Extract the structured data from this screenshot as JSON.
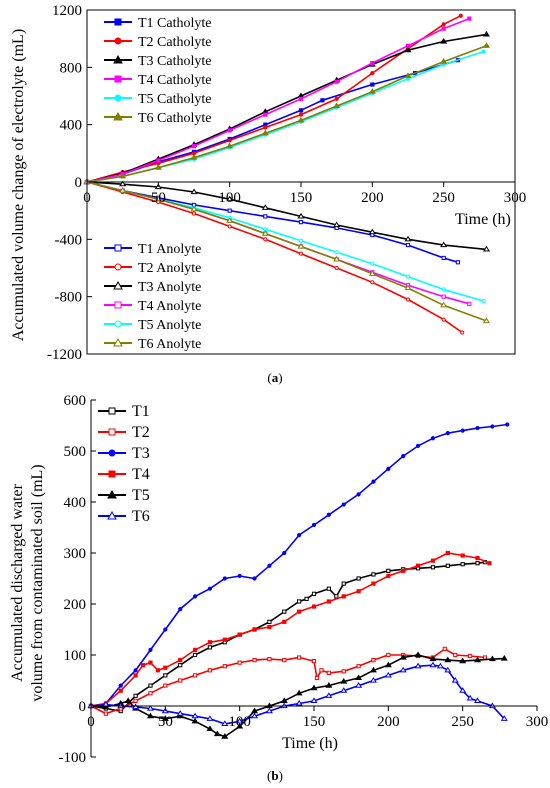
{
  "chart_data": [
    {
      "panel": "(a)",
      "panel_letter": "a",
      "type": "line",
      "xlabel": "Time (h)",
      "ylabel": "Accumulated volume change of electrolyte (mL)",
      "xlim": [
        0,
        300
      ],
      "ylim": [
        -1200,
        1200
      ],
      "xticks": [
        0,
        50,
        100,
        150,
        200,
        250,
        300
      ],
      "yticks": [
        -1200,
        -800,
        -400,
        0,
        400,
        800,
        1200
      ],
      "legend_placement": [
        "top-left",
        "bottom-left"
      ],
      "grid": false,
      "series": [
        {
          "name": "T1 Catholyte",
          "color": "#0000ff",
          "marker": "square-filled",
          "x": [
            0,
            25,
            50,
            75,
            100,
            125,
            150,
            165,
            200,
            230,
            260
          ],
          "y": [
            0,
            55,
            140,
            210,
            300,
            400,
            500,
            570,
            680,
            760,
            850
          ]
        },
        {
          "name": "T2 Catholyte",
          "color": "#ff0000",
          "marker": "circle-filled",
          "x": [
            0,
            25,
            50,
            75,
            100,
            125,
            150,
            175,
            200,
            225,
            250,
            262
          ],
          "y": [
            0,
            70,
            130,
            200,
            290,
            380,
            470,
            580,
            760,
            930,
            1100,
            1160
          ]
        },
        {
          "name": "T3 Catholyte",
          "color": "#000000",
          "marker": "triangle-filled",
          "x": [
            0,
            25,
            50,
            75,
            100,
            125,
            150,
            175,
            200,
            225,
            250,
            280
          ],
          "y": [
            0,
            60,
            160,
            260,
            370,
            490,
            600,
            710,
            820,
            920,
            980,
            1030
          ]
        },
        {
          "name": "T4 Catholyte",
          "color": "#ff00ff",
          "marker": "square-filled",
          "x": [
            0,
            25,
            50,
            75,
            100,
            125,
            150,
            175,
            200,
            225,
            250,
            268
          ],
          "y": [
            0,
            55,
            150,
            250,
            360,
            470,
            580,
            700,
            830,
            950,
            1070,
            1140
          ]
        },
        {
          "name": "T5 Catholyte",
          "color": "#00ffff",
          "marker": "circle-filled",
          "x": [
            0,
            25,
            50,
            75,
            100,
            125,
            150,
            175,
            200,
            225,
            250,
            278
          ],
          "y": [
            0,
            40,
            100,
            160,
            240,
            330,
            420,
            520,
            620,
            720,
            820,
            910
          ]
        },
        {
          "name": "T6 Catholyte",
          "color": "#808000",
          "marker": "triangle-filled",
          "x": [
            0,
            25,
            50,
            75,
            100,
            125,
            150,
            175,
            200,
            225,
            250,
            280
          ],
          "y": [
            0,
            40,
            100,
            170,
            250,
            340,
            430,
            530,
            630,
            740,
            840,
            950
          ]
        },
        {
          "name": "T1 Anolyte",
          "color": "#0000ff",
          "marker": "square-open",
          "x": [
            0,
            25,
            50,
            75,
            100,
            125,
            150,
            175,
            200,
            225,
            250,
            260
          ],
          "y": [
            0,
            -60,
            -110,
            -160,
            -200,
            -240,
            -280,
            -320,
            -370,
            -440,
            -530,
            -560
          ]
        },
        {
          "name": "T2 Anolyte",
          "color": "#ff0000",
          "marker": "circle-open",
          "x": [
            0,
            25,
            50,
            75,
            100,
            125,
            150,
            175,
            200,
            225,
            250,
            263
          ],
          "y": [
            0,
            -70,
            -140,
            -220,
            -310,
            -400,
            -500,
            -600,
            -700,
            -820,
            -960,
            -1050
          ]
        },
        {
          "name": "T3 Anolyte",
          "color": "#000000",
          "marker": "triangle-open",
          "x": [
            0,
            25,
            50,
            75,
            100,
            125,
            150,
            175,
            200,
            225,
            250,
            280
          ],
          "y": [
            0,
            -15,
            -35,
            -70,
            -120,
            -180,
            -240,
            -300,
            -350,
            -400,
            -440,
            -470
          ]
        },
        {
          "name": "T4 Anolyte",
          "color": "#ff00ff",
          "marker": "square-open",
          "x": [
            0,
            25,
            50,
            75,
            100,
            125,
            150,
            175,
            200,
            225,
            250,
            268
          ],
          "y": [
            0,
            -60,
            -120,
            -190,
            -270,
            -360,
            -450,
            -540,
            -630,
            -720,
            -800,
            -850
          ]
        },
        {
          "name": "T5 Anolyte",
          "color": "#00ffff",
          "marker": "circle-open",
          "x": [
            0,
            25,
            50,
            75,
            100,
            125,
            150,
            175,
            200,
            225,
            250,
            278
          ],
          "y": [
            0,
            -60,
            -120,
            -180,
            -250,
            -330,
            -410,
            -490,
            -570,
            -660,
            -750,
            -830
          ]
        },
        {
          "name": "T6 Anolyte",
          "color": "#808000",
          "marker": "triangle-open",
          "x": [
            0,
            25,
            50,
            75,
            100,
            125,
            150,
            175,
            200,
            225,
            250,
            280
          ],
          "y": [
            0,
            -60,
            -120,
            -190,
            -270,
            -360,
            -450,
            -540,
            -640,
            -740,
            -860,
            -970
          ]
        }
      ]
    },
    {
      "panel": "(b)",
      "panel_letter": "b",
      "type": "line",
      "xlabel": "Time (h)",
      "ylabel_lines": [
        "Accumulated discharged water",
        "volume from contaminated soil (mL)"
      ],
      "xlim": [
        0,
        300
      ],
      "ylim": [
        -100,
        600
      ],
      "xticks": [
        0,
        50,
        100,
        150,
        200,
        250,
        300
      ],
      "yticks": [
        -100,
        0,
        100,
        200,
        300,
        400,
        500,
        600
      ],
      "legend_placement": "top-left",
      "grid": false,
      "series": [
        {
          "name": "T1",
          "color": "#000000",
          "marker": "square-open",
          "x": [
            0,
            10,
            20,
            30,
            40,
            50,
            60,
            70,
            80,
            90,
            100,
            110,
            120,
            130,
            140,
            145,
            150,
            160,
            165,
            170,
            180,
            190,
            200,
            210,
            220,
            230,
            240,
            250,
            260,
            265
          ],
          "y": [
            0,
            -5,
            -10,
            20,
            40,
            60,
            80,
            100,
            115,
            125,
            140,
            150,
            165,
            185,
            205,
            210,
            220,
            230,
            215,
            240,
            250,
            258,
            265,
            268,
            270,
            272,
            275,
            278,
            280,
            282
          ]
        },
        {
          "name": "T2",
          "color": "#ff0000",
          "marker": "square-open",
          "x": [
            0,
            10,
            20,
            30,
            40,
            50,
            60,
            70,
            80,
            90,
            100,
            110,
            120,
            130,
            140,
            150,
            152,
            155,
            160,
            170,
            180,
            190,
            200,
            210,
            220,
            230,
            238,
            245,
            255,
            265
          ],
          "y": [
            0,
            -15,
            -5,
            10,
            25,
            40,
            50,
            60,
            70,
            78,
            85,
            90,
            92,
            90,
            95,
            88,
            55,
            70,
            65,
            68,
            78,
            90,
            100,
            100,
            98,
            95,
            112,
            100,
            98,
            95
          ]
        },
        {
          "name": "T3",
          "color": "#0000ff",
          "marker": "circle-filled",
          "x": [
            0,
            10,
            20,
            30,
            40,
            50,
            60,
            70,
            80,
            90,
            100,
            110,
            120,
            130,
            140,
            150,
            160,
            170,
            180,
            190,
            200,
            210,
            220,
            230,
            240,
            250,
            260,
            270,
            280
          ],
          "y": [
            0,
            5,
            40,
            70,
            110,
            150,
            190,
            215,
            230,
            250,
            255,
            250,
            275,
            300,
            335,
            355,
            375,
            395,
            415,
            440,
            465,
            490,
            510,
            525,
            535,
            540,
            545,
            548,
            552
          ]
        },
        {
          "name": "T4",
          "color": "#ff0000",
          "marker": "square-filled",
          "x": [
            0,
            10,
            20,
            30,
            35,
            40,
            45,
            50,
            60,
            70,
            80,
            90,
            100,
            110,
            120,
            130,
            140,
            150,
            160,
            170,
            180,
            190,
            200,
            210,
            220,
            230,
            240,
            250,
            260,
            268
          ],
          "y": [
            0,
            5,
            30,
            60,
            80,
            85,
            70,
            75,
            90,
            110,
            125,
            130,
            140,
            150,
            155,
            165,
            185,
            195,
            205,
            215,
            225,
            240,
            255,
            265,
            275,
            285,
            300,
            295,
            290,
            280
          ]
        },
        {
          "name": "T5",
          "color": "#000000",
          "marker": "triangle-filled",
          "x": [
            0,
            10,
            20,
            25,
            30,
            40,
            50,
            60,
            70,
            80,
            85,
            90,
            100,
            110,
            120,
            130,
            140,
            150,
            160,
            170,
            180,
            190,
            200,
            210,
            220,
            230,
            240,
            250,
            260,
            270,
            278
          ],
          "y": [
            0,
            -2,
            5,
            10,
            -5,
            -20,
            -25,
            -20,
            -30,
            -45,
            -55,
            -60,
            -40,
            -10,
            0,
            10,
            25,
            35,
            40,
            48,
            55,
            70,
            80,
            95,
            100,
            92,
            90,
            88,
            90,
            92,
            93
          ]
        },
        {
          "name": "T6",
          "color": "#0000ff",
          "marker": "triangle-open",
          "x": [
            0,
            10,
            20,
            30,
            40,
            50,
            60,
            70,
            80,
            90,
            100,
            110,
            120,
            130,
            140,
            150,
            160,
            170,
            180,
            190,
            200,
            210,
            220,
            230,
            235,
            240,
            245,
            250,
            255,
            260,
            270,
            278
          ],
          "y": [
            0,
            3,
            0,
            -2,
            -5,
            -10,
            -15,
            -20,
            -25,
            -35,
            -30,
            -20,
            -10,
            0,
            5,
            10,
            20,
            30,
            40,
            50,
            60,
            70,
            78,
            80,
            78,
            70,
            50,
            30,
            15,
            10,
            0,
            -25
          ]
        }
      ]
    }
  ]
}
